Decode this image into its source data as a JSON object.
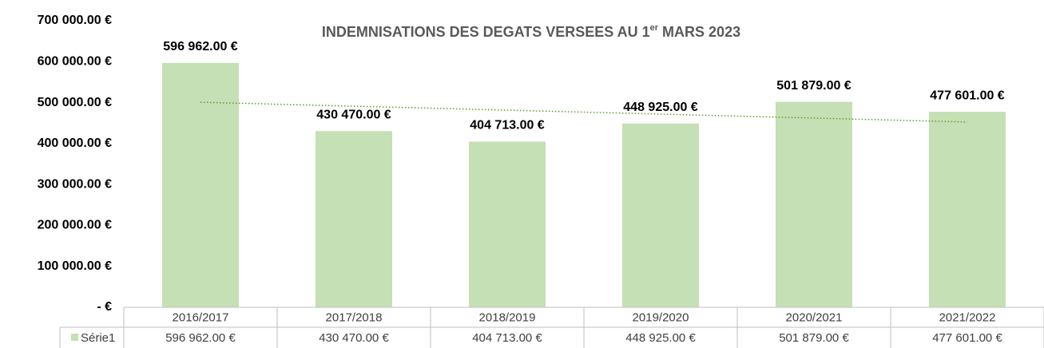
{
  "chart_data": {
    "type": "bar",
    "title": [
      "INDEMNISATIONS DES DEGATS  VERSEES AU 1",
      "er",
      " MARS 2023"
    ],
    "categories": [
      "2016/2017",
      "2017/2018",
      "2018/2019",
      "2019/2020",
      "2020/2021",
      "2021/2022"
    ],
    "series": [
      {
        "name": "Série1",
        "color": "#c5e0b4",
        "values": [
          596962,
          430470,
          404713,
          448925,
          501879,
          477601
        ],
        "value_labels": [
          "596 962.00 €",
          "430 470.00 €",
          "404 713.00 €",
          "448 925.00 €",
          "501 879.00 €",
          "477 601.00 €"
        ]
      }
    ],
    "trendline": {
      "type": "linear",
      "color": "#5a9a2a"
    },
    "ylim": [
      0,
      700000
    ],
    "yticks": [
      {
        "value": 0,
        "label": "-  €"
      },
      {
        "value": 100000,
        "label": "100 000.00 €"
      },
      {
        "value": 200000,
        "label": "200 000.00 €"
      },
      {
        "value": 300000,
        "label": "300 000.00 €"
      },
      {
        "value": 400000,
        "label": "400 000.00 €"
      },
      {
        "value": 500000,
        "label": "500 000.00 €"
      },
      {
        "value": 600000,
        "label": "600 000.00 €"
      },
      {
        "value": 700000,
        "label": "700 000.00 €"
      }
    ],
    "grid": false,
    "data_table": true
  }
}
